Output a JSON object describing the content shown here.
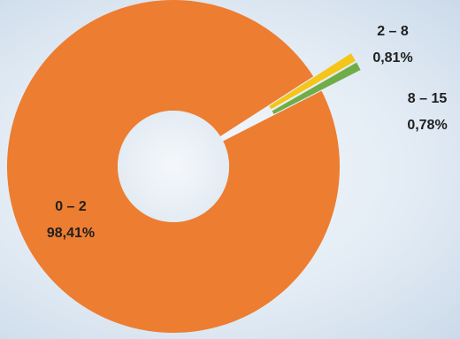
{
  "chart_data": {
    "type": "pie",
    "variant": "donut",
    "title": "",
    "start_angle_deg": -27,
    "slices": [
      {
        "category": "0 – 2",
        "value": 98.41,
        "percent_label": "98,41%",
        "color": "#ed7d31"
      },
      {
        "category": "2 – 8",
        "value": 0.81,
        "percent_label": "0,81%",
        "color": "#f5c518",
        "exploded": true
      },
      {
        "category": "8 – 15",
        "value": 0.78,
        "percent_label": "0,78%",
        "color": "#70ad47",
        "exploded": true
      }
    ]
  }
}
